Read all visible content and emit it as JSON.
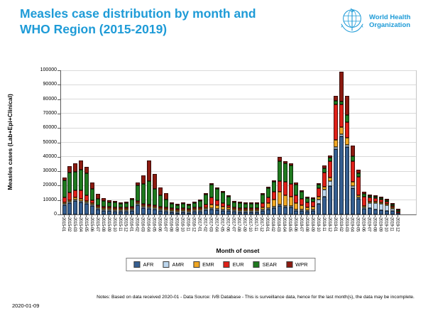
{
  "header": {
    "title_line1": "Measles case distribution by month and",
    "title_line2": "WHO Region (2015-2019)",
    "title_color": "#1E9BD7",
    "logo": {
      "org_line1": "World Health",
      "org_line2": "Organization"
    }
  },
  "chart_data": {
    "type": "bar",
    "stacked": true,
    "xlabel": "Month of onset",
    "ylabel": "Measles cases (Lab+Epi+Clinical)",
    "ylim": [
      0,
      100000
    ],
    "ytick_interval": 10000,
    "grid": true,
    "legend_position": "bottom",
    "categories": [
      "2015-01",
      "2015-02",
      "2015-03",
      "2015-04",
      "2015-05",
      "2015-06",
      "2015-07",
      "2015-08",
      "2015-09",
      "2015-10",
      "2015-11",
      "2015-12",
      "2016-01",
      "2016-02",
      "2016-03",
      "2016-04",
      "2016-05",
      "2016-06",
      "2016-07",
      "2016-08",
      "2016-09",
      "2016-10",
      "2016-11",
      "2016-12",
      "2017-01",
      "2017-02",
      "2017-03",
      "2017-04",
      "2017-05",
      "2017-06",
      "2017-07",
      "2017-08",
      "2017-09",
      "2017-10",
      "2017-11",
      "2017-12",
      "2018-01",
      "2018-02",
      "2018-03",
      "2018-04",
      "2018-05",
      "2018-06",
      "2018-07",
      "2018-08",
      "2018-09",
      "2018-10",
      "2018-11",
      "2018-12",
      "2019-01",
      "2019-02",
      "2019-03",
      "2019-04",
      "2019-05",
      "2019-06",
      "2019-07",
      "2019-08",
      "2019-09",
      "2019-10",
      "2019-11",
      "2019-12"
    ],
    "series": [
      {
        "name": "AFR",
        "color": "#365F91",
        "values": [
          6500,
          7900,
          9200,
          8400,
          7500,
          5900,
          3400,
          2600,
          2300,
          2000,
          1800,
          2000,
          2300,
          6600,
          4500,
          3900,
          3400,
          2600,
          2100,
          1500,
          1100,
          1500,
          1100,
          1800,
          2100,
          2800,
          3400,
          3100,
          2700,
          2300,
          1800,
          1600,
          1400,
          1500,
          1500,
          2600,
          3400,
          4300,
          5900,
          5100,
          4800,
          2600,
          2400,
          2100,
          2400,
          7400,
          12500,
          19800,
          45200,
          54300,
          46900,
          18200,
          10800,
          3800,
          4300,
          3400,
          3000,
          2600,
          2300,
          200
        ]
      },
      {
        "name": "AMR",
        "color": "#BDD7EE",
        "values": [
          100,
          100,
          100,
          100,
          100,
          100,
          100,
          100,
          100,
          100,
          100,
          100,
          100,
          100,
          100,
          100,
          100,
          100,
          100,
          100,
          100,
          100,
          100,
          100,
          100,
          100,
          100,
          100,
          100,
          100,
          100,
          100,
          100,
          100,
          200,
          300,
          300,
          300,
          400,
          400,
          400,
          300,
          500,
          800,
          1200,
          2800,
          4900,
          3300,
          1600,
          1600,
          1600,
          1300,
          1100,
          900,
          3400,
          4400,
          4600,
          3600,
          1600,
          0
        ]
      },
      {
        "name": "EMR",
        "color": "#EFA623",
        "values": [
          1000,
          1000,
          1600,
          1600,
          1000,
          700,
          500,
          400,
          300,
          300,
          300,
          300,
          300,
          400,
          500,
          500,
          400,
          300,
          300,
          200,
          200,
          200,
          200,
          300,
          400,
          700,
          2500,
          2200,
          1800,
          1500,
          900,
          700,
          600,
          600,
          700,
          1600,
          3300,
          4900,
          9000,
          7400,
          6600,
          4100,
          3100,
          2100,
          2000,
          2100,
          1800,
          2500,
          4900,
          4900,
          4900,
          3300,
          1600,
          400,
          300,
          300,
          300,
          300,
          100,
          0
        ]
      },
      {
        "name": "EUR",
        "color": "#DF2119",
        "values": [
          3500,
          5200,
          5200,
          5700,
          3900,
          2000,
          700,
          300,
          300,
          400,
          400,
          400,
          500,
          800,
          800,
          800,
          700,
          500,
          400,
          300,
          300,
          300,
          300,
          300,
          700,
          2000,
          4900,
          3800,
          2600,
          1700,
          900,
          800,
          700,
          800,
          900,
          2500,
          4100,
          5700,
          7400,
          9000,
          9000,
          5700,
          4400,
          3300,
          3100,
          6000,
          9800,
          11500,
          24600,
          15600,
          10700,
          14300,
          12800,
          6800,
          3100,
          2600,
          2000,
          1600,
          800,
          100
        ]
      },
      {
        "name": "SEAR",
        "color": "#1F7A1F",
        "values": [
          11500,
          13900,
          12800,
          14200,
          15100,
          7700,
          4600,
          3900,
          3200,
          3300,
          2800,
          3100,
          5000,
          10600,
          13600,
          16500,
          11500,
          7700,
          5200,
          3000,
          2400,
          3100,
          2300,
          3100,
          4200,
          6900,
          8700,
          7900,
          7000,
          5800,
          3800,
          3400,
          2900,
          2900,
          2900,
          5900,
          6300,
          6600,
          13900,
          12800,
          12600,
          7400,
          4800,
          2800,
          2100,
          2400,
          3100,
          2500,
          2500,
          2000,
          4900,
          3300,
          2500,
          1600,
          1000,
          900,
          700,
          600,
          200,
          100
        ]
      },
      {
        "name": "WPR",
        "color": "#8C1A10",
        "values": [
          2400,
          4400,
          5600,
          6500,
          4400,
          4600,
          3200,
          2000,
          1300,
          1000,
          800,
          800,
          1000,
          2000,
          6000,
          14000,
          10300,
          5400,
          4400,
          1100,
          500,
          400,
          300,
          300,
          400,
          500,
          1100,
          900,
          800,
          600,
          500,
          400,
          300,
          300,
          300,
          400,
          600,
          1300,
          2900,
          1800,
          1600,
          1400,
          800,
          500,
          500,
          800,
          1700,
          1500,
          3300,
          20500,
          13100,
          7400,
          2500,
          1400,
          700,
          500,
          500,
          500,
          100,
          300
        ]
      }
    ]
  },
  "footer": {
    "notes": "Notes: Based on data received 2020-01 - Data Source: IVB Database - This is surveillance data, hence for the last month(s), the data may be incomplete.",
    "date": "2020-01-09"
  }
}
